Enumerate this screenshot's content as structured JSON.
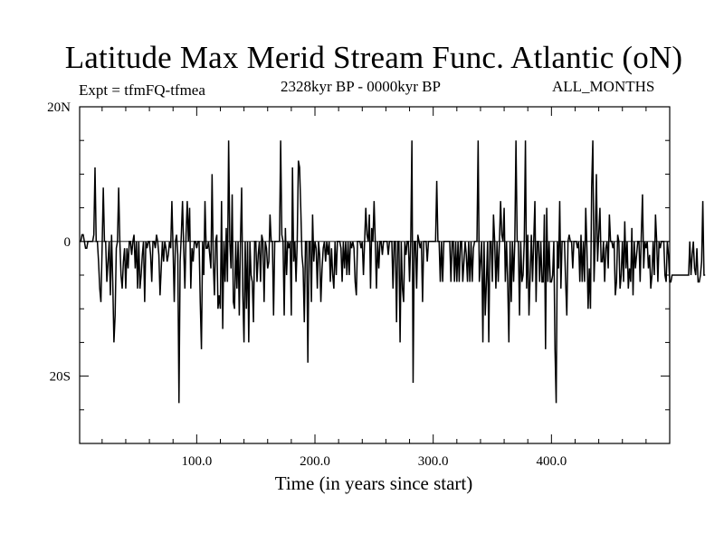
{
  "chart_data": {
    "type": "line",
    "title": "Latitude Max Merid Stream Func. Atlantic (oN)",
    "subtitle_left": "Expt = tfmFQ-tfmea",
    "subtitle_center": "2328kyr BP - 0000kyr BP",
    "subtitle_right": "ALL_MONTHS",
    "xlabel": "Time (in years since start)",
    "ylabel": "",
    "xlim": [
      1,
      500
    ],
    "ylim": [
      -30,
      20
    ],
    "x_ticks": [
      100,
      200,
      300,
      400
    ],
    "x_tick_labels": [
      "100.0",
      "200.0",
      "300.0",
      "400.0"
    ],
    "y_ticks": [
      20,
      0,
      -20
    ],
    "y_tick_labels": [
      "20N",
      "0",
      "20S"
    ],
    "zero_line": true,
    "series": [
      {
        "name": "tfmFQ-tfmea",
        "x_start": 1,
        "x_step": 1,
        "values": [
          0,
          0,
          1,
          1,
          0,
          -1,
          -1,
          0,
          0,
          0,
          0,
          0,
          1,
          11,
          0,
          0,
          -3,
          -7,
          -9,
          -1,
          8,
          0,
          0,
          -6,
          -3,
          0,
          -8,
          1,
          -6,
          -15,
          -11,
          -1,
          0,
          8,
          0,
          -5,
          -7,
          -3,
          -1,
          -7,
          -1,
          -4,
          0,
          0,
          -2,
          0,
          1,
          -4,
          0,
          -7,
          0,
          -7,
          -5,
          -2,
          0,
          -9,
          0,
          -1,
          0,
          0,
          -2,
          -6,
          0,
          0,
          -1,
          1,
          0,
          -2,
          -8,
          -4,
          0,
          -3,
          0,
          -1,
          -3,
          -2,
          0,
          -1,
          6,
          -1,
          -9,
          0,
          1,
          -2,
          -24,
          -3,
          1,
          6,
          -1,
          -7,
          1,
          6,
          0,
          5,
          -7,
          -1,
          -3,
          0,
          0,
          -1,
          0,
          0,
          -9,
          -16,
          0,
          -5,
          6,
          -1,
          -1,
          0,
          -2,
          -4,
          10,
          -3,
          -8,
          0,
          1,
          -10,
          -8,
          -10,
          6,
          -13,
          0,
          -6,
          2,
          -6,
          15,
          0,
          -4,
          7,
          -9,
          -10,
          0,
          -7,
          0,
          -11,
          0,
          8,
          -8,
          -15,
          0,
          -10,
          0,
          -15,
          0,
          -5,
          -6,
          -12,
          0,
          0,
          -6,
          -2,
          0,
          -6,
          1,
          0,
          -9,
          0,
          -1,
          -4,
          -3,
          4,
          0,
          0,
          -11,
          0,
          0,
          0,
          0,
          0,
          15,
          1,
          0,
          -11,
          2,
          -5,
          0,
          -1,
          0,
          -11,
          11,
          -3,
          0,
          -6,
          0,
          12,
          11,
          5,
          -2,
          -4,
          -12,
          0,
          0,
          -18,
          0,
          0,
          -9,
          4,
          -3,
          0,
          -1,
          -7,
          0,
          -2,
          -9,
          -4,
          -1,
          0,
          -3,
          0,
          -2,
          0,
          -6,
          -1,
          -5,
          -7,
          0,
          -5,
          0,
          0,
          0,
          -1,
          -6,
          0,
          -4,
          0,
          -5,
          0,
          -5,
          0,
          -1,
          0,
          -1,
          -6,
          -8,
          0,
          0,
          0,
          -1,
          0,
          -5,
          0,
          5,
          1,
          0,
          4,
          -7,
          2,
          0,
          6,
          0,
          -7,
          0,
          -4,
          0,
          0,
          -2,
          0,
          0,
          0,
          0,
          -2,
          0,
          0,
          0,
          -7,
          0,
          0,
          -12,
          0,
          0,
          -15,
          0,
          -7,
          -9,
          0,
          -2,
          0,
          0,
          -6,
          0,
          15,
          -21,
          0,
          0,
          -7,
          1,
          0,
          -1,
          0,
          -9,
          0,
          0,
          0,
          -3,
          0,
          0,
          0,
          0,
          0,
          0,
          0,
          9,
          0,
          0,
          -6,
          0,
          -6,
          0,
          0,
          0,
          0,
          0,
          0,
          -6,
          0,
          0,
          -6,
          0,
          -6,
          0,
          -6,
          0,
          0,
          -6,
          -3,
          0,
          -2,
          -6,
          0,
          -6,
          0,
          -6,
          -1,
          0,
          0,
          0,
          15,
          -6,
          -3,
          0,
          -15,
          0,
          -11,
          -6,
          0,
          -15,
          0,
          0,
          -6,
          4,
          0,
          -7,
          0,
          -6,
          0,
          6,
          1,
          0,
          5,
          -6,
          0,
          -6,
          -15,
          0,
          -9,
          0,
          -6,
          0,
          15,
          0,
          0,
          -11,
          0,
          -6,
          -5,
          0,
          15,
          -7,
          1,
          -11,
          -5,
          1,
          -6,
          0,
          6,
          -9,
          0,
          0,
          -6,
          0,
          -6,
          -6,
          4,
          -16,
          5,
          -6,
          0,
          -6,
          -6,
          -5,
          0,
          -16,
          -24,
          0,
          -4,
          6,
          -7,
          0,
          0,
          0,
          -6,
          -11,
          0,
          1,
          0,
          0,
          -4,
          0,
          0,
          0,
          -1,
          0,
          -6,
          1,
          -6,
          0,
          -6,
          5,
          -1,
          -10,
          -4,
          -10,
          8,
          15,
          -6,
          0,
          10,
          -3,
          1,
          5,
          -3,
          -3,
          0,
          -6,
          -1,
          0,
          -4,
          4,
          0,
          0,
          -1,
          0,
          -8,
          -6,
          1,
          0,
          -7,
          -5,
          0,
          -6,
          3,
          -4,
          0,
          -7,
          -4,
          -6,
          2,
          -8,
          0,
          -4,
          -2,
          0,
          0,
          -6,
          1,
          7,
          -4,
          0,
          -1,
          0,
          -4,
          -2,
          -7,
          -5,
          0,
          -5,
          4,
          0,
          -6,
          0,
          -1,
          0,
          0,
          0,
          -5,
          -6,
          0,
          -2,
          -6,
          -6,
          -5,
          -5,
          -5,
          -5,
          -5,
          -5,
          -5,
          -5,
          -5,
          -5,
          -5,
          -5,
          -5,
          -5,
          -5,
          0,
          -5,
          -2,
          0,
          -4,
          -5,
          -1,
          -6,
          -6,
          -5,
          -3,
          6,
          -5,
          -5
        ]
      }
    ]
  }
}
